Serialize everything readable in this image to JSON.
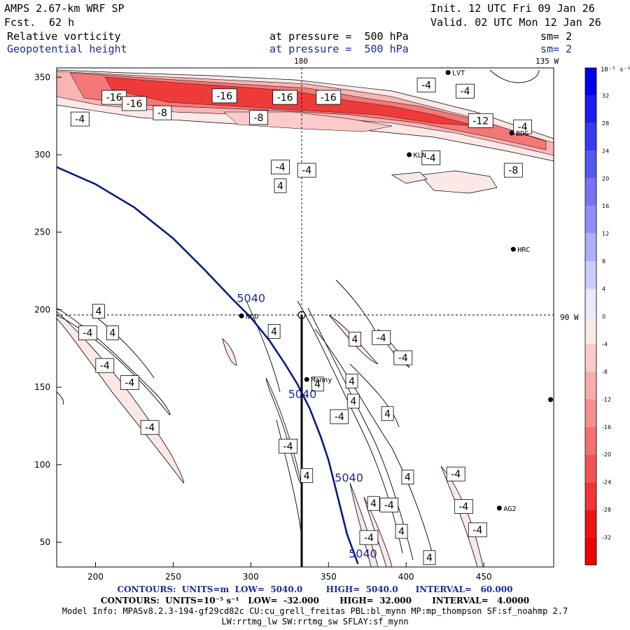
{
  "header": {
    "model": "AMPS 2.67-km WRF SP",
    "fcst_label": "Fcst.",
    "fcst_value": "62 h",
    "init": "Init. 12 UTC Fri 09 Jan 26",
    "valid": "Valid. 02 UTC Mon 12 Jan 26",
    "field1": {
      "name": "Relative vorticity",
      "pressure": "at pressure =  500 hPa",
      "smooth": "sm= 2"
    },
    "field2": {
      "name": "Geopotential height",
      "pressure": "at pressure =  500 hPa",
      "smooth": "sm= 2"
    }
  },
  "axes": {
    "x_ticks": [
      "200",
      "250",
      "300",
      "350",
      "400",
      "450"
    ],
    "y_ticks": [
      "50",
      "100",
      "150",
      "200",
      "250",
      "300",
      "350"
    ],
    "lon_top_left": "180",
    "lon_top_right": "135 W",
    "lon_right": "90 W"
  },
  "colorbar": {
    "unit_label": "10⁻⁵ s⁻¹",
    "ticks": [
      "32",
      "28",
      "24",
      "20",
      "16",
      "12",
      "8",
      "4",
      "0",
      "-4",
      "-8",
      "-12",
      "-16",
      "-20",
      "-24",
      "-28",
      "-32"
    ],
    "levels": [
      36,
      32,
      28,
      24,
      20,
      16,
      12,
      8,
      4,
      0,
      -4,
      -8,
      -12,
      -16,
      -20,
      -24,
      -28,
      -32
    ],
    "colors": [
      "#0000ee",
      "#1c1cf0",
      "#3a3af2",
      "#5656f4",
      "#7373f6",
      "#9090f8",
      "#aeaefa",
      "#cbcbfc",
      "#e8e8fe",
      "#fde8e8",
      "#fbcaca",
      "#f9acac",
      "#f78e8e",
      "#f57070",
      "#f35252",
      "#f13434",
      "#ef1515",
      "#ee0000"
    ]
  },
  "stations": [
    {
      "id": "LVT",
      "x": 427,
      "y": 353
    },
    {
      "id": "BDG",
      "x": 468,
      "y": 314
    },
    {
      "id": "KLN",
      "x": 402,
      "y": 300
    },
    {
      "id": "HRC",
      "x": 469,
      "y": 239
    },
    {
      "id": "NCO",
      "x": 294,
      "y": 196
    },
    {
      "id": "Manny",
      "x": 336,
      "y": 155
    },
    {
      "id": "AG2",
      "x": 460,
      "y": 72
    },
    {
      "id": "",
      "x": 493,
      "y": 142
    }
  ],
  "height_contour": {
    "label": "5040",
    "path": [
      [
        175,
        292
      ],
      [
        200,
        281
      ],
      [
        225,
        266
      ],
      [
        250,
        246
      ],
      [
        270,
        226
      ],
      [
        288,
        207
      ],
      [
        300,
        195
      ],
      [
        312,
        180
      ],
      [
        322,
        165
      ],
      [
        330,
        152
      ],
      [
        338,
        136
      ],
      [
        345,
        118
      ],
      [
        350,
        103
      ],
      [
        355,
        83
      ],
      [
        362,
        55
      ],
      [
        369,
        36
      ]
    ],
    "label_positions": [
      [
        291,
        205
      ],
      [
        324,
        143
      ],
      [
        354,
        89
      ],
      [
        363,
        40
      ]
    ]
  },
  "vorticity_labels": [
    {
      "text": "-16",
      "x": 212,
      "y": 337
    },
    {
      "text": "-16",
      "x": 225,
      "y": 333
    },
    {
      "text": "-16",
      "x": 283,
      "y": 338
    },
    {
      "text": "-16",
      "x": 322,
      "y": 337
    },
    {
      "text": "-16",
      "x": 350,
      "y": 337
    },
    {
      "text": "-8",
      "x": 243,
      "y": 327
    },
    {
      "text": "-8",
      "x": 305,
      "y": 324
    },
    {
      "text": "-4",
      "x": 190,
      "y": 323
    },
    {
      "text": "-4",
      "x": 413,
      "y": 345
    },
    {
      "text": "-4",
      "x": 438,
      "y": 341
    },
    {
      "text": "-4",
      "x": 416,
      "y": 298
    },
    {
      "text": "-4",
      "x": 319,
      "y": 292
    },
    {
      "text": "-4",
      "x": 336,
      "y": 290
    },
    {
      "text": "4",
      "x": 319,
      "y": 280
    },
    {
      "text": "-12",
      "x": 448,
      "y": 322
    },
    {
      "text": "-4",
      "x": 475,
      "y": 318
    },
    {
      "text": "-8",
      "x": 469,
      "y": 290
    },
    {
      "text": "4",
      "x": 202,
      "y": 199
    },
    {
      "text": "-4",
      "x": 195,
      "y": 185
    },
    {
      "text": "4",
      "x": 211,
      "y": 185
    },
    {
      "text": "-4",
      "x": 206,
      "y": 164
    },
    {
      "text": "-4",
      "x": 222,
      "y": 153
    },
    {
      "text": "-4",
      "x": 235,
      "y": 124
    },
    {
      "text": "4",
      "x": 315,
      "y": 186
    },
    {
      "text": "4",
      "x": 367,
      "y": 181
    },
    {
      "text": "-4",
      "x": 384,
      "y": 182
    },
    {
      "text": "-4",
      "x": 398,
      "y": 169
    },
    {
      "text": "4",
      "x": 343,
      "y": 152
    },
    {
      "text": "4",
      "x": 365,
      "y": 154
    },
    {
      "text": "4",
      "x": 366,
      "y": 141
    },
    {
      "text": "-4",
      "x": 357,
      "y": 131
    },
    {
      "text": "4",
      "x": 388,
      "y": 133
    },
    {
      "text": "-4",
      "x": 324,
      "y": 112
    },
    {
      "text": "4",
      "x": 336,
      "y": 93
    },
    {
      "text": "4",
      "x": 401,
      "y": 92
    },
    {
      "text": "-4",
      "x": 432,
      "y": 94
    },
    {
      "text": "4",
      "x": 379,
      "y": 75
    },
    {
      "text": "-4",
      "x": 389,
      "y": 74
    },
    {
      "text": "-4",
      "x": 437,
      "y": 73
    },
    {
      "text": "-4",
      "x": 446,
      "y": 58
    },
    {
      "text": "-4",
      "x": 376,
      "y": 53
    },
    {
      "text": "4",
      "x": 397,
      "y": 57
    },
    {
      "text": "4",
      "x": 415,
      "y": 40
    }
  ],
  "footer": {
    "line1": "CONTOURS:  UNITS=m  LOW=  5040.0        HIGH=  5040.0      INTERVAL=   60.000",
    "line2": "CONTOURS:  UNITS=10⁻⁵ s⁻¹   LOW=  -32.000       HIGH=  32.000       INTERVAL=   4.0000",
    "line3": "Model Info: MPASv8.2.3-194-gf29cd82c CU:cu_grell_freitas PBL:bl_mynn MP:mp_thompson SF:sf_noahmp 2.7",
    "line4": "LW:rrtmg_lw SW:rrtmg_sw SFLAY:sf_mynn"
  }
}
